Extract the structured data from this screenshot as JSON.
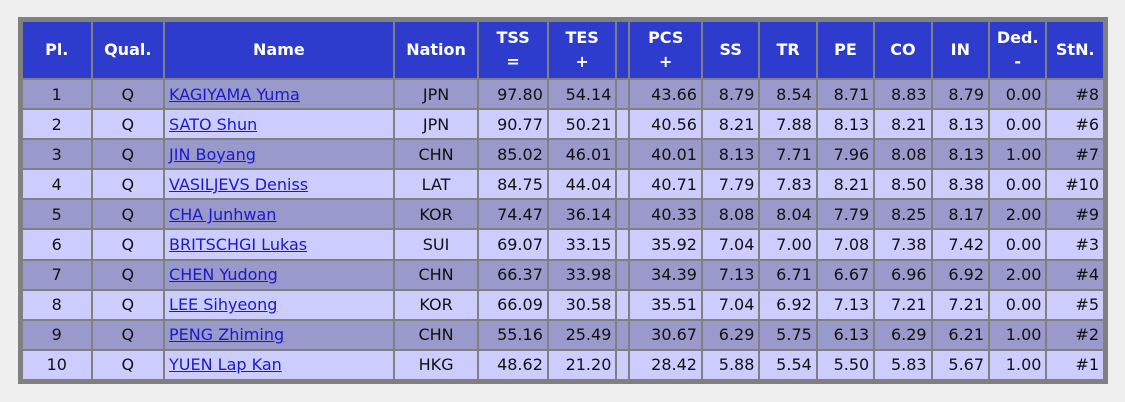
{
  "headers": {
    "pl": "Pl.",
    "qual": "Qual.",
    "name": "Name",
    "nation": "Nation",
    "tss": "TSS",
    "tss_sym": "=",
    "tes": "TES",
    "tes_sym": "+",
    "pcs": "PCS",
    "pcs_sym": "+",
    "ss": "SS",
    "tr": "TR",
    "pe": "PE",
    "co": "CO",
    "in": "IN",
    "ded": "Ded.",
    "ded_sym": "-",
    "stn": "StN."
  },
  "rows": [
    {
      "pl": "1",
      "qual": "Q",
      "name": "KAGIYAMA Yuma",
      "nation": "JPN",
      "tss": "97.80",
      "tes": "54.14",
      "pcs": "43.66",
      "ss": "8.79",
      "tr": "8.54",
      "pe": "8.71",
      "co": "8.83",
      "in": "8.79",
      "ded": "0.00",
      "stn": "#8"
    },
    {
      "pl": "2",
      "qual": "Q",
      "name": "SATO Shun",
      "nation": "JPN",
      "tss": "90.77",
      "tes": "50.21",
      "pcs": "40.56",
      "ss": "8.21",
      "tr": "7.88",
      "pe": "8.13",
      "co": "8.21",
      "in": "8.13",
      "ded": "0.00",
      "stn": "#6"
    },
    {
      "pl": "3",
      "qual": "Q",
      "name": "JIN Boyang",
      "nation": "CHN",
      "tss": "85.02",
      "tes": "46.01",
      "pcs": "40.01",
      "ss": "8.13",
      "tr": "7.71",
      "pe": "7.96",
      "co": "8.08",
      "in": "8.13",
      "ded": "1.00",
      "stn": "#7"
    },
    {
      "pl": "4",
      "qual": "Q",
      "name": "VASILJEVS Deniss",
      "nation": "LAT",
      "tss": "84.75",
      "tes": "44.04",
      "pcs": "40.71",
      "ss": "7.79",
      "tr": "7.83",
      "pe": "8.21",
      "co": "8.50",
      "in": "8.38",
      "ded": "0.00",
      "stn": "#10"
    },
    {
      "pl": "5",
      "qual": "Q",
      "name": "CHA Junhwan",
      "nation": "KOR",
      "tss": "74.47",
      "tes": "36.14",
      "pcs": "40.33",
      "ss": "8.08",
      "tr": "8.04",
      "pe": "7.79",
      "co": "8.25",
      "in": "8.17",
      "ded": "2.00",
      "stn": "#9"
    },
    {
      "pl": "6",
      "qual": "Q",
      "name": "BRITSCHGI Lukas",
      "nation": "SUI",
      "tss": "69.07",
      "tes": "33.15",
      "pcs": "35.92",
      "ss": "7.04",
      "tr": "7.00",
      "pe": "7.08",
      "co": "7.38",
      "in": "7.42",
      "ded": "0.00",
      "stn": "#3"
    },
    {
      "pl": "7",
      "qual": "Q",
      "name": "CHEN Yudong",
      "nation": "CHN",
      "tss": "66.37",
      "tes": "33.98",
      "pcs": "34.39",
      "ss": "7.13",
      "tr": "6.71",
      "pe": "6.67",
      "co": "6.96",
      "in": "6.92",
      "ded": "2.00",
      "stn": "#4"
    },
    {
      "pl": "8",
      "qual": "Q",
      "name": "LEE Sihyeong",
      "nation": "KOR",
      "tss": "66.09",
      "tes": "30.58",
      "pcs": "35.51",
      "ss": "7.04",
      "tr": "6.92",
      "pe": "7.13",
      "co": "7.21",
      "in": "7.21",
      "ded": "0.00",
      "stn": "#5"
    },
    {
      "pl": "9",
      "qual": "Q",
      "name": "PENG Zhiming",
      "nation": "CHN",
      "tss": "55.16",
      "tes": "25.49",
      "pcs": "30.67",
      "ss": "6.29",
      "tr": "5.75",
      "pe": "6.13",
      "co": "6.29",
      "in": "6.21",
      "ded": "1.00",
      "stn": "#2"
    },
    {
      "pl": "10",
      "qual": "Q",
      "name": "YUEN Lap Kan",
      "nation": "HKG",
      "tss": "48.62",
      "tes": "21.20",
      "pcs": "28.42",
      "ss": "5.88",
      "tr": "5.54",
      "pe": "5.50",
      "co": "5.83",
      "in": "5.67",
      "ded": "1.00",
      "stn": "#1"
    }
  ]
}
